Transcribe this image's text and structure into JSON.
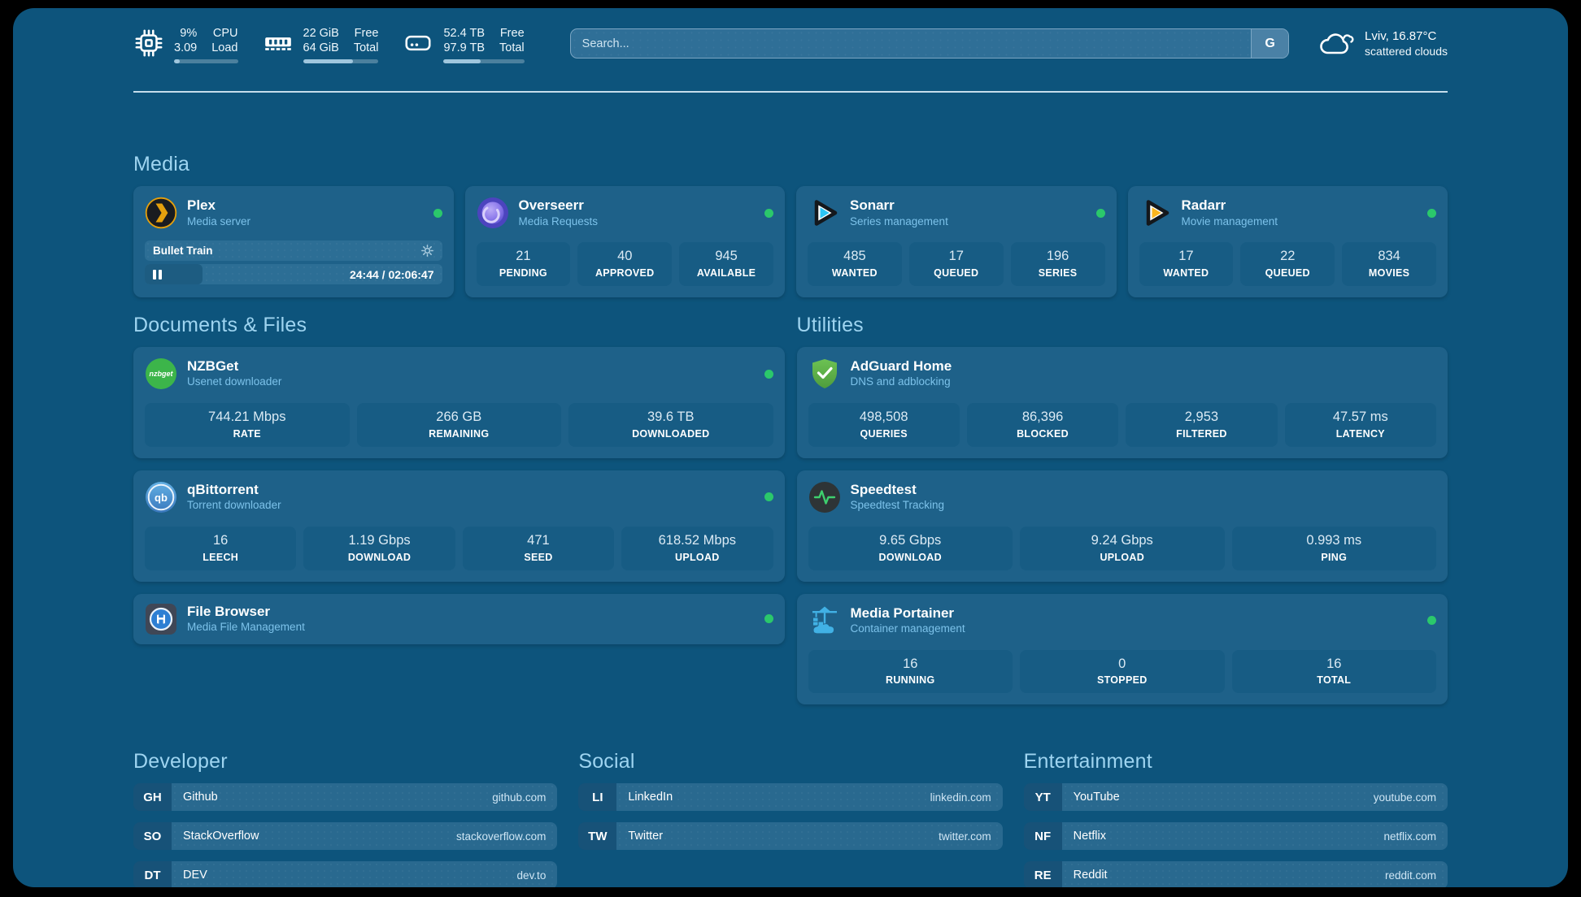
{
  "header": {
    "stats": [
      {
        "icon": "cpu-icon",
        "value1": "9%",
        "value2": "3.09",
        "label1": "CPU",
        "label2": "Load",
        "progress": 9
      },
      {
        "icon": "ram-icon",
        "value1": "22 GiB",
        "value2": "64 GiB",
        "label1": "Free",
        "label2": "Total",
        "progress": 66
      },
      {
        "icon": "disk-icon",
        "value1": "52.4 TB",
        "value2": "97.9 TB",
        "label1": "Free",
        "label2": "Total",
        "progress": 46
      }
    ],
    "search": {
      "placeholder": "Search...",
      "button": "G"
    },
    "weather": {
      "title": "Lviv, 16.87°C",
      "subtitle": "scattered clouds"
    }
  },
  "sections": {
    "media": {
      "title": "Media",
      "apps": [
        {
          "name": "Plex",
          "subtitle": "Media server",
          "status": "online",
          "now_playing": {
            "title": "Bullet Train",
            "time": "24:44 / 02:06:47",
            "progress_pct": 19.5
          }
        },
        {
          "name": "Overseerr",
          "subtitle": "Media Requests",
          "status": "online",
          "stats": [
            {
              "value": "21",
              "label": "PENDING"
            },
            {
              "value": "40",
              "label": "APPROVED"
            },
            {
              "value": "945",
              "label": "AVAILABLE"
            }
          ]
        },
        {
          "name": "Sonarr",
          "subtitle": "Series management",
          "status": "online",
          "stats": [
            {
              "value": "485",
              "label": "WANTED"
            },
            {
              "value": "17",
              "label": "QUEUED"
            },
            {
              "value": "196",
              "label": "SERIES"
            }
          ]
        },
        {
          "name": "Radarr",
          "subtitle": "Movie management",
          "status": "online",
          "stats": [
            {
              "value": "17",
              "label": "WANTED"
            },
            {
              "value": "22",
              "label": "QUEUED"
            },
            {
              "value": "834",
              "label": "MOVIES"
            }
          ]
        }
      ]
    },
    "documents": {
      "title": "Documents & Files",
      "apps": [
        {
          "name": "NZBGet",
          "subtitle": "Usenet downloader",
          "status": "online",
          "stats": [
            {
              "value": "744.21 Mbps",
              "label": "RATE"
            },
            {
              "value": "266 GB",
              "label": "REMAINING"
            },
            {
              "value": "39.6 TB",
              "label": "DOWNLOADED"
            }
          ]
        },
        {
          "name": "qBittorrent",
          "subtitle": "Torrent downloader",
          "status": "online",
          "stats": [
            {
              "value": "16",
              "label": "LEECH"
            },
            {
              "value": "1.19 Gbps",
              "label": "DOWNLOAD"
            },
            {
              "value": "471",
              "label": "SEED"
            },
            {
              "value": "618.52 Mbps",
              "label": "UPLOAD"
            }
          ]
        },
        {
          "name": "File Browser",
          "subtitle": "Media File Management",
          "status": "online",
          "stats": []
        }
      ]
    },
    "utilities": {
      "title": "Utilities",
      "apps": [
        {
          "name": "AdGuard Home",
          "subtitle": "DNS and adblocking",
          "stats": [
            {
              "value": "498,508",
              "label": "QUERIES"
            },
            {
              "value": "86,396",
              "label": "BLOCKED"
            },
            {
              "value": "2,953",
              "label": "FILTERED"
            },
            {
              "value": "47.57 ms",
              "label": "LATENCY"
            }
          ]
        },
        {
          "name": "Speedtest",
          "subtitle": "Speedtest Tracking",
          "stats": [
            {
              "value": "9.65 Gbps",
              "label": "DOWNLOAD"
            },
            {
              "value": "9.24 Gbps",
              "label": "UPLOAD"
            },
            {
              "value": "0.993 ms",
              "label": "PING"
            }
          ]
        },
        {
          "name": "Media Portainer",
          "subtitle": "Container management",
          "status": "online",
          "stats": [
            {
              "value": "16",
              "label": "RUNNING"
            },
            {
              "value": "0",
              "label": "STOPPED"
            },
            {
              "value": "16",
              "label": "TOTAL"
            }
          ]
        }
      ]
    },
    "developer": {
      "title": "Developer",
      "links": [
        {
          "abbr": "GH",
          "name": "Github",
          "url": "github.com"
        },
        {
          "abbr": "SO",
          "name": "StackOverflow",
          "url": "stackoverflow.com"
        },
        {
          "abbr": "DT",
          "name": "DEV",
          "url": "dev.to"
        }
      ]
    },
    "social": {
      "title": "Social",
      "links": [
        {
          "abbr": "LI",
          "name": "LinkedIn",
          "url": "linkedin.com"
        },
        {
          "abbr": "TW",
          "name": "Twitter",
          "url": "twitter.com"
        }
      ]
    },
    "entertainment": {
      "title": "Entertainment",
      "links": [
        {
          "abbr": "YT",
          "name": "YouTube",
          "url": "youtube.com"
        },
        {
          "abbr": "NF",
          "name": "Netflix",
          "url": "netflix.com"
        },
        {
          "abbr": "RE",
          "name": "Reddit",
          "url": "reddit.com"
        }
      ]
    }
  },
  "colors": {
    "page_bg": "#0d547c",
    "card_bg": "#1e6189",
    "stat_box_bg": "#175c84",
    "online_green": "#2bc86b",
    "heading": "#9ed4f0",
    "subtitle": "#7cc2ea"
  }
}
